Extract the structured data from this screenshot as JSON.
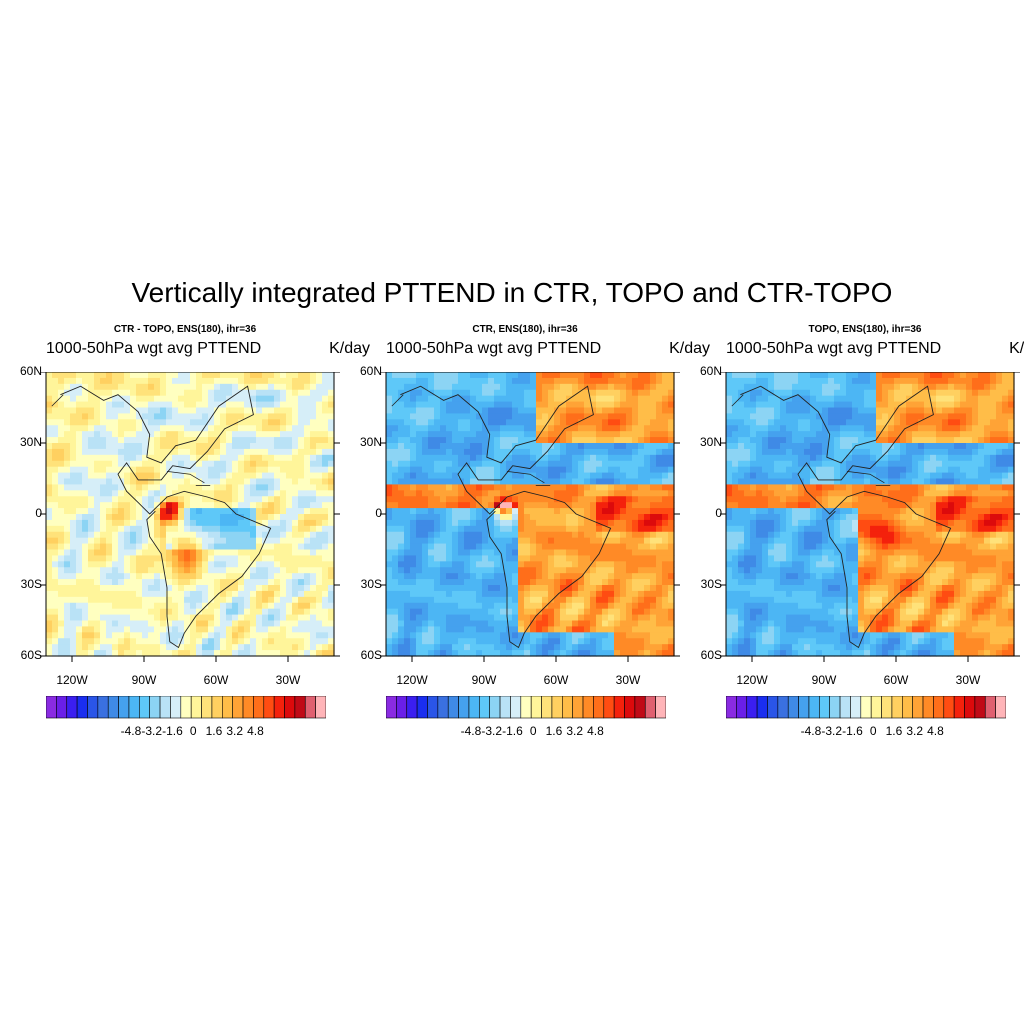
{
  "title": "Vertically integrated PTTEND in CTR, TOPO and CTR-TOPO",
  "panels": [
    {
      "title": "CTR - TOPO, ENS(180), ihr=36",
      "left_string": "1000-50hPa wgt avg PTTEND",
      "right_string": "K/day"
    },
    {
      "title": "CTR, ENS(180), ihr=36",
      "left_string": "1000-50hPa wgt avg PTTEND",
      "right_string": "K/day"
    },
    {
      "title": "TOPO, ENS(180), ihr=36",
      "left_string": "1000-50hPa wgt avg PTTEND",
      "right_string": "K/day"
    }
  ],
  "axes": {
    "lat_ticks": [
      "60N",
      "30N",
      "0",
      "30S",
      "60S"
    ],
    "lon_ticks": [
      "120W",
      "90W",
      "60W",
      "30W"
    ]
  },
  "colorbar": {
    "labels": [
      "-4.8",
      "-3.2",
      "-1.6",
      "0",
      "1.6",
      "3.2",
      "4.8"
    ],
    "colors": [
      "#8a2be2",
      "#6a1fe8",
      "#3b1ff0",
      "#1a2ef0",
      "#2a55e8",
      "#3a70e0",
      "#3f8ae6",
      "#45a1ee",
      "#4cb6f4",
      "#5ec8f8",
      "#8cd4f4",
      "#b9e2f6",
      "#d6eef8",
      "#ffffc0",
      "#fff59a",
      "#ffe27a",
      "#ffd060",
      "#ffbd48",
      "#ffa336",
      "#ff8a26",
      "#ff6e1a",
      "#ff4c12",
      "#f4210c",
      "#dc0a0c",
      "#c00a16",
      "#e06070",
      "#ffb4b8"
    ]
  },
  "chart_data": [
    {
      "type": "heatmap",
      "panel": "CTR - TOPO",
      "units": "K/day",
      "lon_range": [
        "125W",
        "10W"
      ],
      "lat_range": [
        "60S",
        "60N"
      ]
    },
    {
      "type": "heatmap",
      "panel": "CTR",
      "units": "K/day",
      "lon_range": [
        "125W",
        "10W"
      ],
      "lat_range": [
        "60S",
        "60N"
      ]
    },
    {
      "type": "heatmap",
      "panel": "TOPO",
      "units": "K/day",
      "lon_range": [
        "125W",
        "10W"
      ],
      "lat_range": [
        "60S",
        "60N"
      ]
    }
  ]
}
